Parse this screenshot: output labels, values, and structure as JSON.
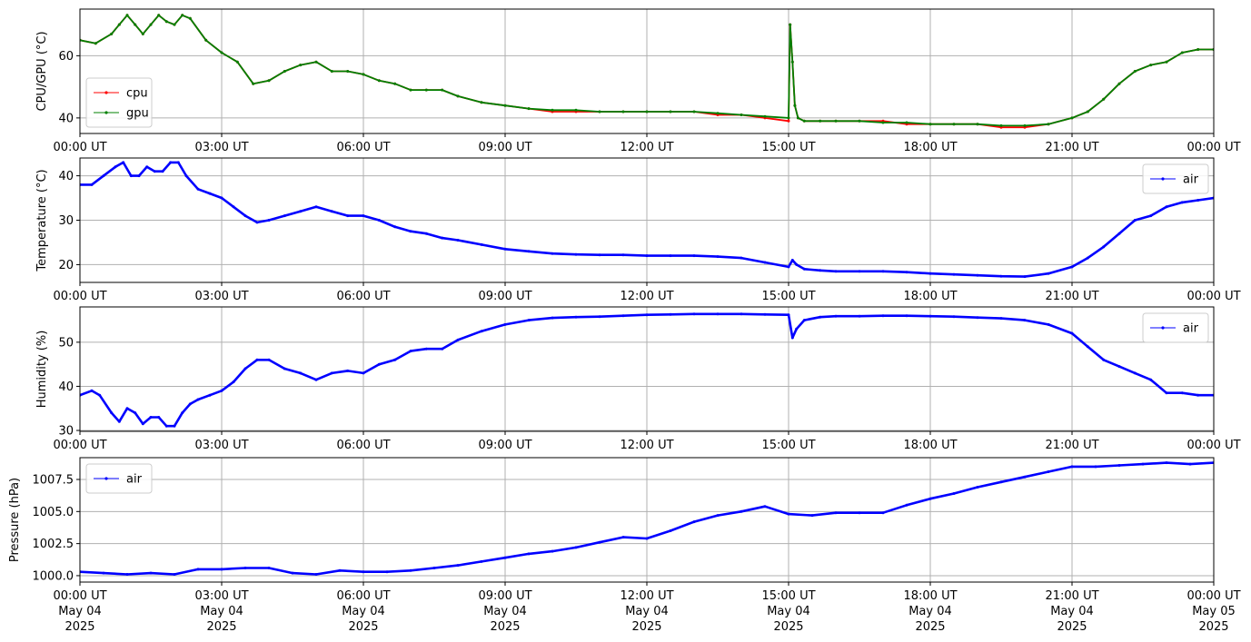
{
  "x_ticks": [
    {
      "label": "00:00 UT",
      "date": "May 04",
      "year": "2025"
    },
    {
      "label": "03:00 UT",
      "date": "May 04",
      "year": "2025"
    },
    {
      "label": "06:00 UT",
      "date": "May 04",
      "year": "2025"
    },
    {
      "label": "09:00 UT",
      "date": "May 04",
      "year": "2025"
    },
    {
      "label": "12:00 UT",
      "date": "May 04",
      "year": "2025"
    },
    {
      "label": "15:00 UT",
      "date": "May 04",
      "year": "2025"
    },
    {
      "label": "18:00 UT",
      "date": "May 04",
      "year": "2025"
    },
    {
      "label": "21:00 UT",
      "date": "May 04",
      "year": "2025"
    },
    {
      "label": "00:00 UT",
      "date": "May 05",
      "year": "2025"
    }
  ],
  "chart_data": [
    {
      "type": "line",
      "ylabel": "CPU/GPU (°C)",
      "ylim": [
        35,
        75
      ],
      "yticks": [
        40,
        60
      ],
      "xlim": [
        "2025-05-04 00:00",
        "2025-05-05 00:00"
      ],
      "grid": true,
      "legend_position": "lower-left",
      "series": [
        {
          "name": "cpu",
          "color": "#ff0000",
          "x": [
            "00:00",
            "00:20",
            "00:40",
            "00:50",
            "01:00",
            "01:10",
            "01:20",
            "01:30",
            "01:40",
            "01:50",
            "02:00",
            "02:10",
            "02:20",
            "02:40",
            "03:00",
            "03:20",
            "03:40",
            "04:00",
            "04:20",
            "04:40",
            "05:00",
            "05:20",
            "05:40",
            "06:00",
            "06:20",
            "06:40",
            "07:00",
            "07:20",
            "07:40",
            "08:00",
            "08:30",
            "09:00",
            "09:30",
            "10:00",
            "10:30",
            "11:00",
            "11:30",
            "12:00",
            "12:30",
            "13:00",
            "13:30",
            "14:00",
            "14:30",
            "15:00",
            "15:02",
            "15:05",
            "15:08",
            "15:12",
            "15:20",
            "15:40",
            "16:00",
            "16:30",
            "17:00",
            "17:30",
            "18:00",
            "18:30",
            "19:00",
            "19:30",
            "20:00",
            "20:30",
            "21:00",
            "21:20",
            "21:40",
            "22:00",
            "22:20",
            "22:40",
            "23:00",
            "23:20",
            "23:40",
            "24:00"
          ],
          "values": [
            65,
            64,
            67,
            70,
            73,
            70,
            67,
            70,
            73,
            71,
            70,
            73,
            72,
            65,
            61,
            58,
            51,
            52,
            55,
            57,
            58,
            55,
            55,
            54,
            52,
            51,
            49,
            49,
            49,
            47,
            45,
            44,
            43,
            42,
            42,
            42,
            42,
            42,
            42,
            42,
            41,
            41,
            40,
            39,
            70,
            58,
            44,
            40,
            39,
            39,
            39,
            39,
            39,
            38,
            38,
            38,
            38,
            37,
            37,
            38,
            40,
            42,
            46,
            51,
            55,
            57,
            58,
            61,
            62,
            62
          ]
        },
        {
          "name": "gpu",
          "color": "#008000",
          "x": [
            "00:00",
            "00:20",
            "00:40",
            "00:50",
            "01:00",
            "01:10",
            "01:20",
            "01:30",
            "01:40",
            "01:50",
            "02:00",
            "02:10",
            "02:20",
            "02:40",
            "03:00",
            "03:20",
            "03:40",
            "04:00",
            "04:20",
            "04:40",
            "05:00",
            "05:20",
            "05:40",
            "06:00",
            "06:20",
            "06:40",
            "07:00",
            "07:20",
            "07:40",
            "08:00",
            "08:30",
            "09:00",
            "09:30",
            "10:00",
            "10:30",
            "11:00",
            "11:30",
            "12:00",
            "12:30",
            "13:00",
            "13:30",
            "14:00",
            "14:30",
            "15:00",
            "15:02",
            "15:05",
            "15:08",
            "15:12",
            "15:20",
            "15:40",
            "16:00",
            "16:30",
            "17:00",
            "17:30",
            "18:00",
            "18:30",
            "19:00",
            "19:30",
            "20:00",
            "20:30",
            "21:00",
            "21:20",
            "21:40",
            "22:00",
            "22:20",
            "22:40",
            "23:00",
            "23:20",
            "23:40",
            "24:00"
          ],
          "values": [
            65,
            64,
            67,
            70,
            73,
            70,
            67,
            70,
            73,
            71,
            70,
            73,
            72,
            65,
            61,
            58,
            51,
            52,
            55,
            57,
            58,
            55,
            55,
            54,
            52,
            51,
            49,
            49,
            49,
            47,
            45,
            44,
            43,
            42.5,
            42.5,
            42,
            42,
            42,
            42,
            42,
            41.5,
            41,
            40.5,
            40,
            70,
            58,
            44,
            40,
            39,
            39,
            39,
            39,
            38.5,
            38.5,
            38,
            38,
            38,
            37.5,
            37.5,
            38,
            40,
            42,
            46,
            51,
            55,
            57,
            58,
            61,
            62,
            62
          ]
        }
      ]
    },
    {
      "type": "line",
      "ylabel": "Temperature (°C)",
      "ylim": [
        16,
        44
      ],
      "yticks": [
        20,
        30,
        40
      ],
      "xlim": [
        "2025-05-04 00:00",
        "2025-05-05 00:00"
      ],
      "grid": true,
      "legend_position": "upper-right",
      "series": [
        {
          "name": "air",
          "color": "#0000ff",
          "x": [
            "00:00",
            "00:15",
            "00:30",
            "00:45",
            "00:55",
            "01:05",
            "01:15",
            "01:25",
            "01:35",
            "01:45",
            "01:55",
            "02:05",
            "02:15",
            "02:30",
            "02:45",
            "03:00",
            "03:15",
            "03:30",
            "03:45",
            "04:00",
            "04:20",
            "04:40",
            "05:00",
            "05:20",
            "05:40",
            "06:00",
            "06:20",
            "06:40",
            "07:00",
            "07:20",
            "07:40",
            "08:00",
            "08:30",
            "09:00",
            "09:30",
            "10:00",
            "10:30",
            "11:00",
            "11:30",
            "12:00",
            "12:30",
            "13:00",
            "13:30",
            "14:00",
            "14:30",
            "15:00",
            "15:05",
            "15:10",
            "15:20",
            "15:40",
            "16:00",
            "16:30",
            "17:00",
            "17:30",
            "18:00",
            "18:30",
            "19:00",
            "19:30",
            "20:00",
            "20:30",
            "21:00",
            "21:20",
            "21:40",
            "22:00",
            "22:20",
            "22:40",
            "23:00",
            "23:20",
            "23:40",
            "24:00"
          ],
          "values": [
            38,
            38,
            40,
            42,
            43,
            40,
            40,
            42,
            41,
            41,
            43,
            43,
            40,
            37,
            36,
            35,
            33,
            31,
            29.5,
            30,
            31,
            32,
            33,
            32,
            31,
            31,
            30,
            28.5,
            27.5,
            27,
            26,
            25.5,
            24.5,
            23.5,
            23,
            22.5,
            22.3,
            22.2,
            22.2,
            22,
            22,
            22,
            21.8,
            21.5,
            20.5,
            19.5,
            21,
            20,
            19,
            18.7,
            18.5,
            18.5,
            18.5,
            18.3,
            18,
            17.8,
            17.6,
            17.4,
            17.3,
            18,
            19.5,
            21.5,
            24,
            27,
            30,
            31,
            33,
            34,
            34.5,
            35
          ]
        }
      ]
    },
    {
      "type": "line",
      "ylabel": "Humidity (%)",
      "ylim": [
        29.8,
        58
      ],
      "yticks": [
        30,
        40,
        50
      ],
      "xlim": [
        "2025-05-04 00:00",
        "2025-05-05 00:00"
      ],
      "grid": true,
      "legend_position": "upper-right",
      "series": [
        {
          "name": "air",
          "color": "#0000ff",
          "x": [
            "00:00",
            "00:15",
            "00:25",
            "00:40",
            "00:50",
            "01:00",
            "01:10",
            "01:20",
            "01:30",
            "01:40",
            "01:50",
            "02:00",
            "02:10",
            "02:20",
            "02:30",
            "02:45",
            "03:00",
            "03:15",
            "03:30",
            "03:45",
            "04:00",
            "04:20",
            "04:40",
            "05:00",
            "05:20",
            "05:40",
            "06:00",
            "06:20",
            "06:40",
            "07:00",
            "07:20",
            "07:40",
            "08:00",
            "08:30",
            "09:00",
            "09:30",
            "10:00",
            "10:30",
            "11:00",
            "11:30",
            "12:00",
            "12:30",
            "13:00",
            "13:30",
            "14:00",
            "14:30",
            "15:00",
            "15:05",
            "15:10",
            "15:20",
            "15:40",
            "16:00",
            "16:30",
            "17:00",
            "17:30",
            "18:00",
            "18:30",
            "19:00",
            "19:30",
            "20:00",
            "20:30",
            "21:00",
            "21:20",
            "21:40",
            "22:00",
            "22:20",
            "22:40",
            "23:00",
            "23:20",
            "23:40",
            "24:00"
          ],
          "values": [
            38,
            39,
            38,
            34,
            32,
            35,
            34,
            31.5,
            33,
            33,
            31,
            31,
            34,
            36,
            37,
            38,
            39,
            41,
            44,
            46,
            46,
            44,
            43,
            41.5,
            43,
            43.5,
            43,
            45,
            46,
            48,
            48.5,
            48.5,
            50.5,
            52.5,
            54,
            55,
            55.5,
            55.7,
            55.8,
            56,
            56.2,
            56.3,
            56.4,
            56.4,
            56.4,
            56.3,
            56.2,
            51,
            53,
            55,
            55.7,
            55.9,
            55.9,
            56,
            56,
            55.9,
            55.8,
            55.6,
            55.4,
            55,
            54,
            52,
            49,
            46,
            44.5,
            43,
            41.5,
            38.5,
            38.5,
            38,
            38
          ]
        }
      ]
    },
    {
      "type": "line",
      "ylabel": "Pressure (hPa)",
      "ylim": [
        999.5,
        1009.2
      ],
      "yticks": [
        "1000.0",
        "1002.5",
        "1005.0",
        "1007.5"
      ],
      "xlim": [
        "2025-05-04 00:00",
        "2025-05-05 00:00"
      ],
      "grid": true,
      "legend_position": "upper-left",
      "series": [
        {
          "name": "air",
          "color": "#0000ff",
          "x": [
            "00:00",
            "00:30",
            "01:00",
            "01:30",
            "02:00",
            "02:30",
            "03:00",
            "03:30",
            "04:00",
            "04:30",
            "05:00",
            "05:30",
            "06:00",
            "06:30",
            "07:00",
            "07:30",
            "08:00",
            "08:30",
            "09:00",
            "09:30",
            "10:00",
            "10:30",
            "11:00",
            "11:30",
            "12:00",
            "12:30",
            "13:00",
            "13:30",
            "14:00",
            "14:30",
            "15:00",
            "15:30",
            "16:00",
            "16:30",
            "17:00",
            "17:30",
            "18:00",
            "18:30",
            "19:00",
            "19:30",
            "20:00",
            "20:30",
            "21:00",
            "21:30",
            "22:00",
            "22:30",
            "23:00",
            "23:30",
            "24:00"
          ],
          "values": [
            1000.3,
            1000.2,
            1000.1,
            1000.2,
            1000.1,
            1000.5,
            1000.5,
            1000.6,
            1000.6,
            1000.2,
            1000.1,
            1000.4,
            1000.3,
            1000.3,
            1000.4,
            1000.6,
            1000.8,
            1001.1,
            1001.4,
            1001.7,
            1001.9,
            1002.2,
            1002.6,
            1003.0,
            1002.9,
            1003.5,
            1004.2,
            1004.7,
            1005.0,
            1005.4,
            1004.8,
            1004.7,
            1004.9,
            1004.9,
            1004.9,
            1005.5,
            1006.0,
            1006.4,
            1006.9,
            1007.3,
            1007.7,
            1008.1,
            1008.5,
            1008.5,
            1008.6,
            1008.7,
            1008.8,
            1008.7,
            1008.8
          ]
        }
      ]
    }
  ]
}
